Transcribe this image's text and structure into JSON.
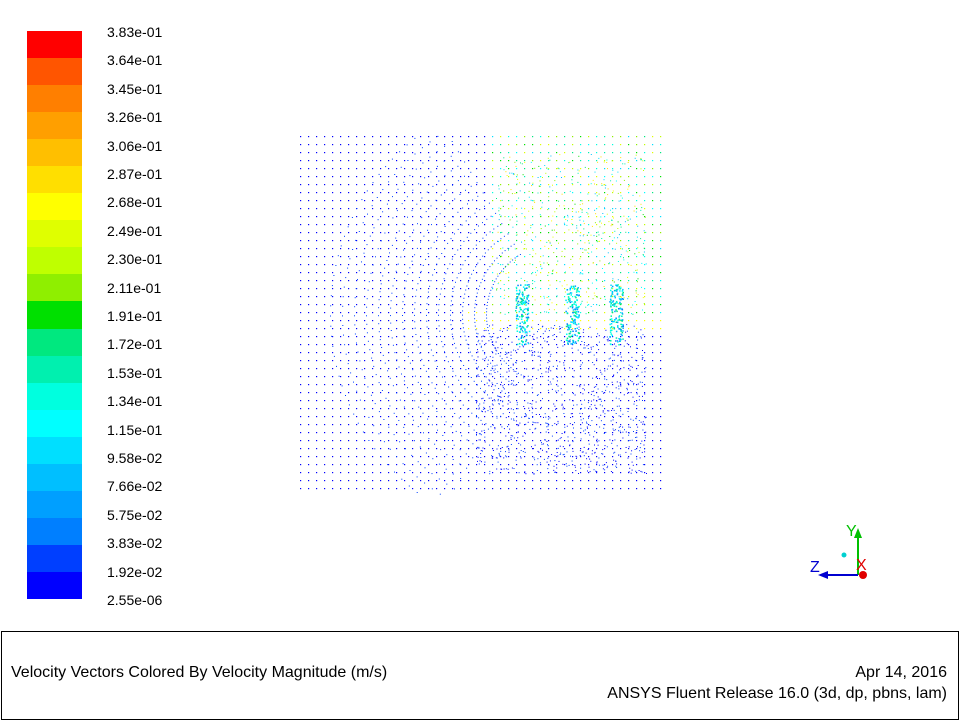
{
  "legend": {
    "labels": [
      "3.83e-01",
      "3.64e-01",
      "3.45e-01",
      "3.26e-01",
      "3.06e-01",
      "2.87e-01",
      "2.68e-01",
      "2.49e-01",
      "2.30e-01",
      "2.11e-01",
      "1.91e-01",
      "1.72e-01",
      "1.53e-01",
      "1.34e-01",
      "1.15e-01",
      "9.58e-02",
      "7.66e-02",
      "5.75e-02",
      "3.83e-02",
      "1.92e-02",
      "2.55e-06"
    ],
    "colors": [
      "#ff0000",
      "#ff5500",
      "#ff7f00",
      "#ff9f00",
      "#ffbf00",
      "#ffdf00",
      "#ffff00",
      "#dfff00",
      "#bfff00",
      "#8fef00",
      "#00e000",
      "#00e87f",
      "#00f0af",
      "#00ffdf",
      "#00ffff",
      "#00dfff",
      "#00bfff",
      "#009fff",
      "#007fff",
      "#003fff",
      "#0000ff"
    ]
  },
  "axes": {
    "y_label": "Y",
    "z_label": "Z",
    "x_label": "X"
  },
  "footer": {
    "caption": "Velocity Vectors Colored By Velocity Magnitude (m/s)",
    "date": "Apr 14, 2016",
    "release": "ANSYS Fluent Release 16.0 (3d, dp, pbns, lam)"
  }
}
